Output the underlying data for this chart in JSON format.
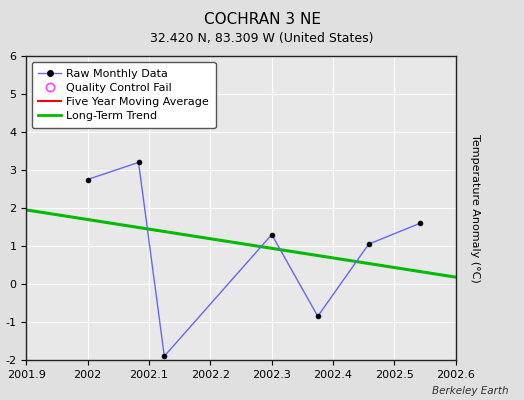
{
  "title": "COCHRAN 3 NE",
  "subtitle": "32.420 N, 83.309 W (United States)",
  "ylabel_right": "Temperature Anomaly (°C)",
  "watermark": "Berkeley Earth",
  "raw_x": [
    2002.0,
    2002.083,
    2002.125,
    2002.3,
    2002.375,
    2002.458,
    2002.542
  ],
  "raw_y": [
    2.75,
    3.2,
    -1.9,
    1.3,
    -0.85,
    1.05,
    1.6
  ],
  "trend_x": [
    2001.9,
    2002.6
  ],
  "trend_y": [
    1.95,
    0.18
  ],
  "xlim": [
    2001.9,
    2002.6
  ],
  "ylim": [
    -2,
    6
  ],
  "yticks": [
    -2,
    -1,
    0,
    1,
    2,
    3,
    4,
    5,
    6
  ],
  "xticks": [
    2001.9,
    2002.0,
    2002.1,
    2002.2,
    2002.3,
    2002.4,
    2002.5,
    2002.6
  ],
  "line_color": "#6666ff",
  "marker_color": "#000000",
  "trend_color": "#00bb00",
  "five_year_color": "#ff0000",
  "qc_color": "#ff44ff",
  "fig_bg_color": "#e0e0e0",
  "plot_bg_color": "#e8e8e8",
  "grid_color": "#ffffff",
  "spine_color": "#222222",
  "title_fontsize": 11,
  "subtitle_fontsize": 9,
  "tick_fontsize": 8,
  "legend_fontsize": 8,
  "ylabel_fontsize": 8
}
